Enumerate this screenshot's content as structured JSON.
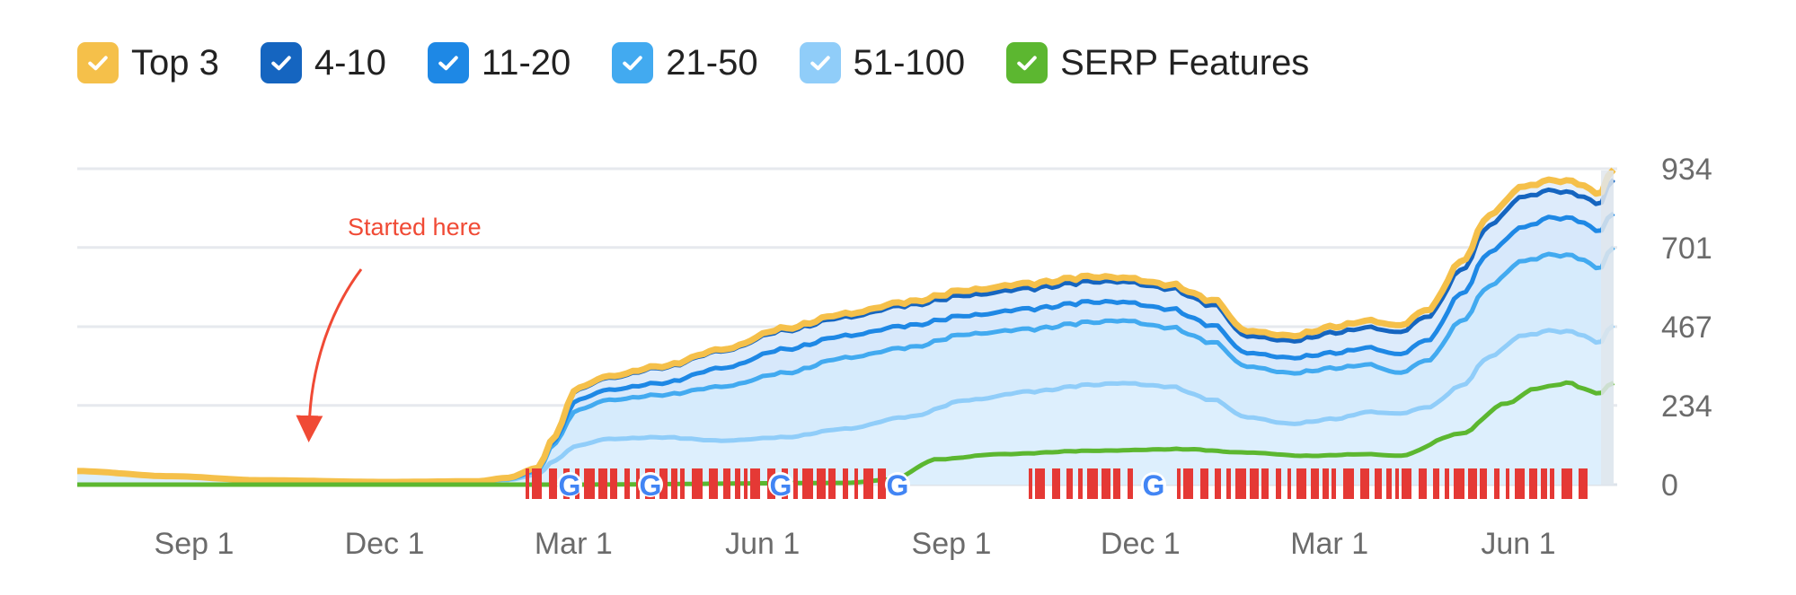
{
  "legend": {
    "items": [
      {
        "label": "Top 3",
        "color": "#f5c04a"
      },
      {
        "label": "4-10",
        "color": "#1565c0"
      },
      {
        "label": "11-20",
        "color": "#1e88e5"
      },
      {
        "label": "21-50",
        "color": "#42aaf0"
      },
      {
        "label": "51-100",
        "color": "#90cdf9"
      },
      {
        "label": "SERP Features",
        "color": "#5cb730"
      }
    ]
  },
  "annotation": {
    "text": "Started here",
    "color": "#f04a35"
  },
  "chart_data": {
    "type": "area",
    "stacked": true,
    "y_ticks": [
      "0",
      "234",
      "467",
      "701",
      "934"
    ],
    "ylim": [
      0,
      934
    ],
    "x_tick_labels": [
      "Sep 1",
      "Dec 1",
      "Mar 1",
      "Jun 1",
      "Sep 1",
      "Dec 1",
      "Mar 1",
      "Jun 1"
    ],
    "grid": true,
    "legend_position": "top",
    "series": [
      {
        "name": "51-100",
        "color": "#90cdf9",
        "points": [
          [
            0,
            40
          ],
          [
            0.06,
            25
          ],
          [
            0.12,
            13
          ],
          [
            0.2,
            8
          ],
          [
            0.26,
            10
          ],
          [
            0.28,
            14
          ],
          [
            0.3,
            30
          ],
          [
            0.31,
            70
          ],
          [
            0.325,
            115
          ],
          [
            0.345,
            135
          ],
          [
            0.38,
            140
          ],
          [
            0.42,
            130
          ],
          [
            0.46,
            140
          ],
          [
            0.5,
            165
          ],
          [
            0.54,
            200
          ],
          [
            0.58,
            250
          ],
          [
            0.62,
            275
          ],
          [
            0.66,
            295
          ],
          [
            0.68,
            300
          ],
          [
            0.71,
            290
          ],
          [
            0.74,
            250
          ],
          [
            0.76,
            200
          ],
          [
            0.79,
            180
          ],
          [
            0.82,
            195
          ],
          [
            0.84,
            215
          ],
          [
            0.86,
            210
          ],
          [
            0.88,
            230
          ],
          [
            0.9,
            290
          ],
          [
            0.92,
            380
          ],
          [
            0.94,
            440
          ],
          [
            0.96,
            455
          ],
          [
            0.975,
            450
          ],
          [
            0.99,
            420
          ],
          [
            1,
            470
          ]
        ]
      },
      {
        "name": "21-50",
        "color": "#42aaf0",
        "points": [
          [
            0,
            40
          ],
          [
            0.06,
            25
          ],
          [
            0.12,
            13
          ],
          [
            0.2,
            8
          ],
          [
            0.26,
            10
          ],
          [
            0.28,
            16
          ],
          [
            0.3,
            40
          ],
          [
            0.31,
            120
          ],
          [
            0.325,
            220
          ],
          [
            0.345,
            250
          ],
          [
            0.38,
            265
          ],
          [
            0.42,
            290
          ],
          [
            0.46,
            330
          ],
          [
            0.5,
            375
          ],
          [
            0.54,
            405
          ],
          [
            0.58,
            445
          ],
          [
            0.62,
            460
          ],
          [
            0.66,
            480
          ],
          [
            0.68,
            485
          ],
          [
            0.71,
            465
          ],
          [
            0.74,
            420
          ],
          [
            0.76,
            350
          ],
          [
            0.79,
            330
          ],
          [
            0.82,
            345
          ],
          [
            0.84,
            355
          ],
          [
            0.86,
            330
          ],
          [
            0.88,
            370
          ],
          [
            0.9,
            480
          ],
          [
            0.92,
            590
          ],
          [
            0.94,
            660
          ],
          [
            0.96,
            680
          ],
          [
            0.975,
            675
          ],
          [
            0.99,
            640
          ],
          [
            1,
            700
          ]
        ]
      },
      {
        "name": "11-20",
        "color": "#1e88e5",
        "points": [
          [
            0,
            40
          ],
          [
            0.06,
            25
          ],
          [
            0.12,
            13
          ],
          [
            0.2,
            8
          ],
          [
            0.26,
            10
          ],
          [
            0.28,
            18
          ],
          [
            0.3,
            45
          ],
          [
            0.31,
            130
          ],
          [
            0.325,
            250
          ],
          [
            0.345,
            280
          ],
          [
            0.38,
            300
          ],
          [
            0.42,
            345
          ],
          [
            0.46,
            400
          ],
          [
            0.5,
            440
          ],
          [
            0.54,
            470
          ],
          [
            0.58,
            500
          ],
          [
            0.62,
            520
          ],
          [
            0.66,
            540
          ],
          [
            0.68,
            540
          ],
          [
            0.71,
            520
          ],
          [
            0.74,
            470
          ],
          [
            0.76,
            390
          ],
          [
            0.79,
            375
          ],
          [
            0.82,
            390
          ],
          [
            0.84,
            405
          ],
          [
            0.86,
            385
          ],
          [
            0.88,
            430
          ],
          [
            0.9,
            560
          ],
          [
            0.92,
            690
          ],
          [
            0.94,
            760
          ],
          [
            0.96,
            790
          ],
          [
            0.975,
            785
          ],
          [
            0.99,
            750
          ],
          [
            1,
            800
          ]
        ]
      },
      {
        "name": "4-10",
        "color": "#1565c0",
        "points": [
          [
            0,
            40
          ],
          [
            0.06,
            25
          ],
          [
            0.12,
            13
          ],
          [
            0.2,
            8
          ],
          [
            0.26,
            10
          ],
          [
            0.28,
            20
          ],
          [
            0.3,
            50
          ],
          [
            0.31,
            140
          ],
          [
            0.325,
            280
          ],
          [
            0.345,
            315
          ],
          [
            0.38,
            345
          ],
          [
            0.42,
            395
          ],
          [
            0.46,
            455
          ],
          [
            0.5,
            495
          ],
          [
            0.54,
            530
          ],
          [
            0.58,
            560
          ],
          [
            0.62,
            580
          ],
          [
            0.66,
            600
          ],
          [
            0.68,
            600
          ],
          [
            0.71,
            580
          ],
          [
            0.74,
            530
          ],
          [
            0.76,
            440
          ],
          [
            0.79,
            425
          ],
          [
            0.82,
            450
          ],
          [
            0.84,
            465
          ],
          [
            0.86,
            450
          ],
          [
            0.88,
            500
          ],
          [
            0.9,
            630
          ],
          [
            0.92,
            770
          ],
          [
            0.94,
            850
          ],
          [
            0.96,
            870
          ],
          [
            0.975,
            860
          ],
          [
            0.99,
            830
          ],
          [
            1,
            900
          ]
        ]
      },
      {
        "name": "Top 3",
        "color": "#f5c04a",
        "points": [
          [
            0,
            40
          ],
          [
            0.06,
            25
          ],
          [
            0.12,
            13
          ],
          [
            0.2,
            8
          ],
          [
            0.26,
            10
          ],
          [
            0.28,
            20
          ],
          [
            0.3,
            50
          ],
          [
            0.31,
            140
          ],
          [
            0.325,
            285
          ],
          [
            0.345,
            320
          ],
          [
            0.38,
            350
          ],
          [
            0.42,
            400
          ],
          [
            0.46,
            462
          ],
          [
            0.5,
            505
          ],
          [
            0.54,
            540
          ],
          [
            0.58,
            575
          ],
          [
            0.62,
            595
          ],
          [
            0.66,
            615
          ],
          [
            0.68,
            612
          ],
          [
            0.71,
            592
          ],
          [
            0.74,
            545
          ],
          [
            0.76,
            455
          ],
          [
            0.79,
            440
          ],
          [
            0.82,
            468
          ],
          [
            0.84,
            485
          ],
          [
            0.86,
            470
          ],
          [
            0.88,
            520
          ],
          [
            0.9,
            655
          ],
          [
            0.92,
            800
          ],
          [
            0.94,
            880
          ],
          [
            0.96,
            900
          ],
          [
            0.975,
            895
          ],
          [
            0.99,
            860
          ],
          [
            1,
            930
          ]
        ]
      },
      {
        "name": "SERP Features",
        "color": "#5cb730",
        "points": [
          [
            0,
            0
          ],
          [
            0.29,
            0
          ],
          [
            0.32,
            0
          ],
          [
            0.5,
            5
          ],
          [
            0.53,
            15
          ],
          [
            0.56,
            75
          ],
          [
            0.6,
            90
          ],
          [
            0.66,
            100
          ],
          [
            0.72,
            105
          ],
          [
            0.76,
            95
          ],
          [
            0.8,
            85
          ],
          [
            0.84,
            90
          ],
          [
            0.86,
            85
          ],
          [
            0.9,
            150
          ],
          [
            0.93,
            240
          ],
          [
            0.95,
            285
          ],
          [
            0.97,
            300
          ],
          [
            0.99,
            270
          ],
          [
            1,
            300
          ]
        ]
      }
    ]
  }
}
